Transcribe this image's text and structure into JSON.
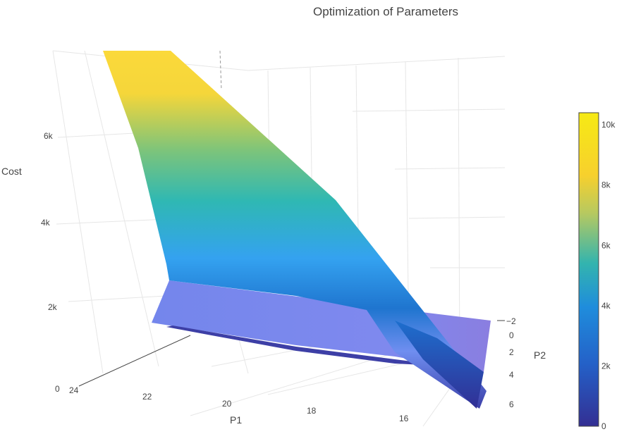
{
  "chart_data": {
    "type": "surface",
    "title": "Optimization of Parameters",
    "axes": {
      "x": {
        "label": "P1",
        "ticks": [
          "24",
          "22",
          "20",
          "18",
          "16"
        ]
      },
      "y": {
        "label": "P2",
        "ticks": [
          "−2",
          "0",
          "2",
          "4",
          "6"
        ]
      },
      "z": {
        "label": "Cost",
        "ticks": [
          "0",
          "2k",
          "4k",
          "6k"
        ]
      }
    },
    "colorbar": {
      "min": 0,
      "max": 10400,
      "ticks": [
        "0",
        "2k",
        "4k",
        "6k",
        "8k",
        "10k"
      ],
      "tick_values": [
        0,
        2000,
        4000,
        6000,
        8000,
        10000
      ],
      "colorscale": "Portland-like",
      "colors": [
        "#3a3a9a",
        "#2070d0",
        "#2aa8b0",
        "#f6d030",
        "#f5e81a"
      ]
    },
    "legend": "none"
  }
}
